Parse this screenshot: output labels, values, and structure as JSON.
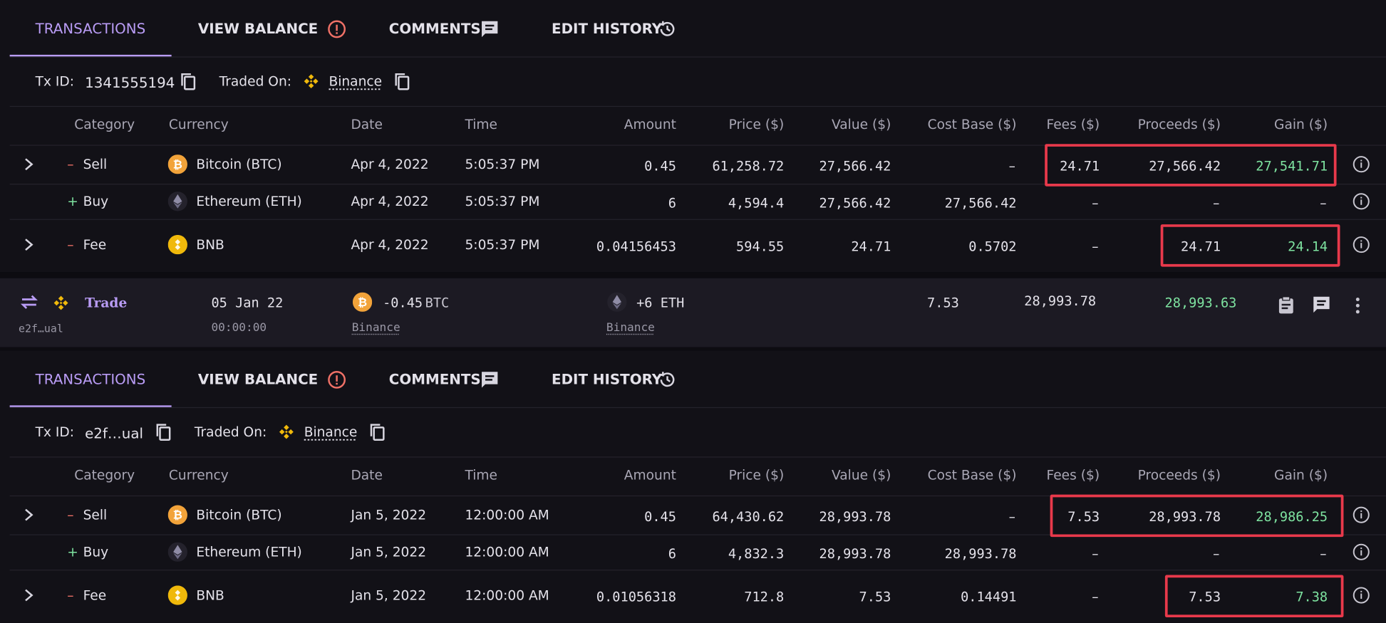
{
  "panels": [
    {
      "tabs": [
        "TRANSACTIONS",
        "VIEW BALANCE",
        "COMMENTS",
        "EDIT HISTORY"
      ],
      "tx_id_label": "Tx ID:",
      "tx_id": "1341555194",
      "traded_on_label": "Traded On:",
      "exchange": "Binance",
      "columns": [
        "Category",
        "Currency",
        "Date",
        "Time",
        "Amount",
        "Price ($)",
        "Value ($)",
        "Cost Base ($)",
        "Fees ($)",
        "Proceeds ($)",
        "Gain ($)"
      ],
      "rows": [
        {
          "sign": "–",
          "category": "Sell",
          "currency": "Bitcoin (BTC)",
          "date": "Apr 4, 2022",
          "time": "5:05:37 PM",
          "amount": "0.45",
          "price": "61,258.72",
          "value": "27,566.42",
          "cost_base": "–",
          "fees": "24.71",
          "proceeds": "27,566.42",
          "gain": "27,541.71"
        },
        {
          "sign": "+",
          "category": "Buy",
          "currency": "Ethereum (ETH)",
          "date": "Apr 4, 2022",
          "time": "5:05:37 PM",
          "amount": "6",
          "price": "4,594.4",
          "value": "27,566.42",
          "cost_base": "27,566.42",
          "fees": "–",
          "proceeds": "–",
          "gain": "–"
        },
        {
          "sign": "–",
          "category": "Fee",
          "currency": "BNB",
          "date": "Apr 4, 2022",
          "time": "5:05:37 PM",
          "amount": "0.04156453",
          "price": "594.55",
          "value": "24.71",
          "cost_base": "0.5702",
          "fees": "–",
          "proceeds": "24.71",
          "gain": "24.14"
        }
      ]
    },
    {
      "tabs": [
        "TRANSACTIONS",
        "VIEW BALANCE",
        "COMMENTS",
        "EDIT HISTORY"
      ],
      "tx_id_label": "Tx ID:",
      "tx_id": "e2f…ual",
      "traded_on_label": "Traded On:",
      "exchange": "Binance",
      "columns": [
        "Category",
        "Currency",
        "Date",
        "Time",
        "Amount",
        "Price ($)",
        "Value ($)",
        "Cost Base ($)",
        "Fees ($)",
        "Proceeds ($)",
        "Gain ($)"
      ],
      "rows": [
        {
          "sign": "–",
          "category": "Sell",
          "currency": "Bitcoin (BTC)",
          "date": "Jan 5, 2022",
          "time": "12:00:00 AM",
          "amount": "0.45",
          "price": "64,430.62",
          "value": "28,993.78",
          "cost_base": "–",
          "fees": "7.53",
          "proceeds": "28,993.78",
          "gain": "28,986.25"
        },
        {
          "sign": "+",
          "category": "Buy",
          "currency": "Ethereum (ETH)",
          "date": "Jan 5, 2022",
          "time": "12:00:00 AM",
          "amount": "6",
          "price": "4,832.3",
          "value": "28,993.78",
          "cost_base": "28,993.78",
          "fees": "–",
          "proceeds": "–",
          "gain": "–"
        },
        {
          "sign": "–",
          "category": "Fee",
          "currency": "BNB",
          "date": "Jan 5, 2022",
          "time": "12:00:00 AM",
          "amount": "0.01056318",
          "price": "712.8",
          "value": "7.53",
          "cost_base": "0.14491",
          "fees": "–",
          "proceeds": "7.53",
          "gain": "7.38"
        }
      ]
    }
  ],
  "trade": {
    "type": "Trade",
    "tx_id": "e2f…ual",
    "date": "05 Jan 22",
    "time": "00:00:00",
    "sent_amount": "-0.45",
    "sent_currency": "BTC",
    "sent_exchange": "Binance",
    "received": "+6 ETH",
    "received_exchange": "Binance",
    "fees": "7.53",
    "value": "28,993.78",
    "gain": "28,993.63"
  }
}
